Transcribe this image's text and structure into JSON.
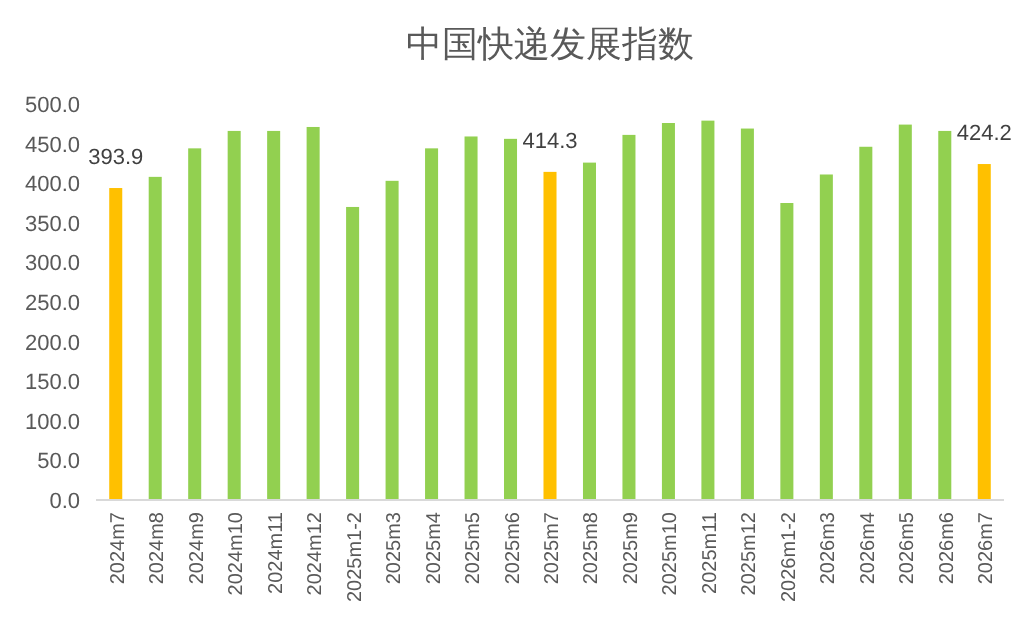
{
  "chart_data": {
    "type": "bar",
    "title": "中国快递发展指数",
    "categories": [
      "2024m7",
      "2024m8",
      "2024m9",
      "2024m10",
      "2024m11",
      "2024m12",
      "2025m1-2",
      "2025m3",
      "2025m4",
      "2025m5",
      "2025m6",
      "2025m7",
      "2025m8",
      "2025m9",
      "2025m10",
      "2025m11",
      "2025m12",
      "2026m1-2",
      "2026m3",
      "2026m4",
      "2026m5",
      "2026m6",
      "2026m7"
    ],
    "values": [
      393.9,
      408,
      444,
      466,
      466,
      471,
      370,
      403,
      444,
      459,
      456,
      414.3,
      426,
      461,
      476,
      479,
      469,
      375,
      411,
      446,
      474,
      466,
      424.2
    ],
    "colors": [
      "#ffc000",
      "#92d050",
      "#92d050",
      "#92d050",
      "#92d050",
      "#92d050",
      "#92d050",
      "#92d050",
      "#92d050",
      "#92d050",
      "#92d050",
      "#ffc000",
      "#92d050",
      "#92d050",
      "#92d050",
      "#92d050",
      "#92d050",
      "#92d050",
      "#92d050",
      "#92d050",
      "#92d050",
      "#92d050",
      "#ffc000"
    ],
    "value_labels": [
      "393.9",
      null,
      null,
      null,
      null,
      null,
      null,
      null,
      null,
      null,
      null,
      "414.3",
      null,
      null,
      null,
      null,
      null,
      null,
      null,
      null,
      null,
      null,
      "424.2"
    ],
    "ylim": [
      0,
      500
    ],
    "yticks": [
      {
        "value": 0,
        "label": "0.0"
      },
      {
        "value": 50,
        "label": "50.0"
      },
      {
        "value": 100,
        "label": "100.0"
      },
      {
        "value": 150,
        "label": "150.0"
      },
      {
        "value": 200,
        "label": "200.0"
      },
      {
        "value": 250,
        "label": "250.0"
      },
      {
        "value": 300,
        "label": "300.0"
      },
      {
        "value": 350,
        "label": "350.0"
      },
      {
        "value": 400,
        "label": "400.0"
      },
      {
        "value": 450,
        "label": "450.0"
      },
      {
        "value": 500,
        "label": "500.0"
      }
    ],
    "grid": false
  }
}
